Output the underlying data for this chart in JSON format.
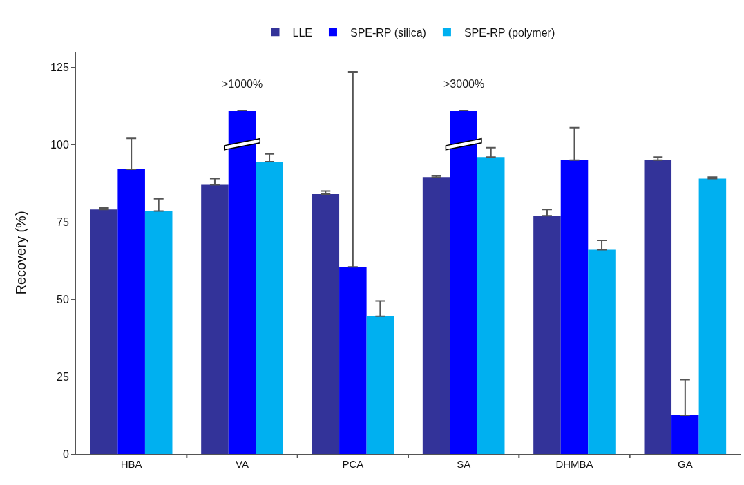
{
  "chart_data": {
    "type": "bar",
    "ylabel": "Recovery (%)",
    "categories": [
      "HBA",
      "VA",
      "PCA",
      "SA",
      "DHMBA",
      "GA"
    ],
    "series": [
      {
        "name": "LLE",
        "color": "#333399",
        "values": [
          79,
          87,
          84,
          89.5,
          77,
          95
        ],
        "errors": [
          [
            79,
            79.5
          ],
          [
            87,
            89
          ],
          [
            84,
            85
          ],
          [
            89.5,
            90
          ],
          [
            77,
            79
          ],
          [
            95,
            96
          ]
        ]
      },
      {
        "name": "SPE-RP (silica)",
        "color": "#0000ff",
        "values": [
          92,
          111,
          60.5,
          111,
          95,
          12.5
        ],
        "errors": [
          [
            92,
            102
          ],
          null,
          [
            60.5,
            123.5
          ],
          null,
          [
            95,
            105.5
          ],
          [
            12.5,
            24
          ]
        ]
      },
      {
        "name": "SPE-RP (polymer)",
        "color": "#00b0f0",
        "values": [
          78.5,
          94.5,
          44.5,
          96,
          66,
          89
        ],
        "errors": [
          [
            78.5,
            82.5
          ],
          [
            94.5,
            97
          ],
          [
            44.5,
            49.5
          ],
          [
            96,
            99
          ],
          [
            66,
            69
          ],
          [
            89,
            89.5
          ]
        ]
      }
    ],
    "annotations": [
      {
        "text": ">1000%",
        "x": "VA",
        "y": 111
      },
      {
        "text": ">3000%",
        "x": "SA",
        "y": 111
      }
    ],
    "ylim": [
      0,
      130
    ],
    "yticks": [
      0,
      25,
      50,
      75,
      100,
      125
    ],
    "grid": false,
    "legend": "top"
  }
}
